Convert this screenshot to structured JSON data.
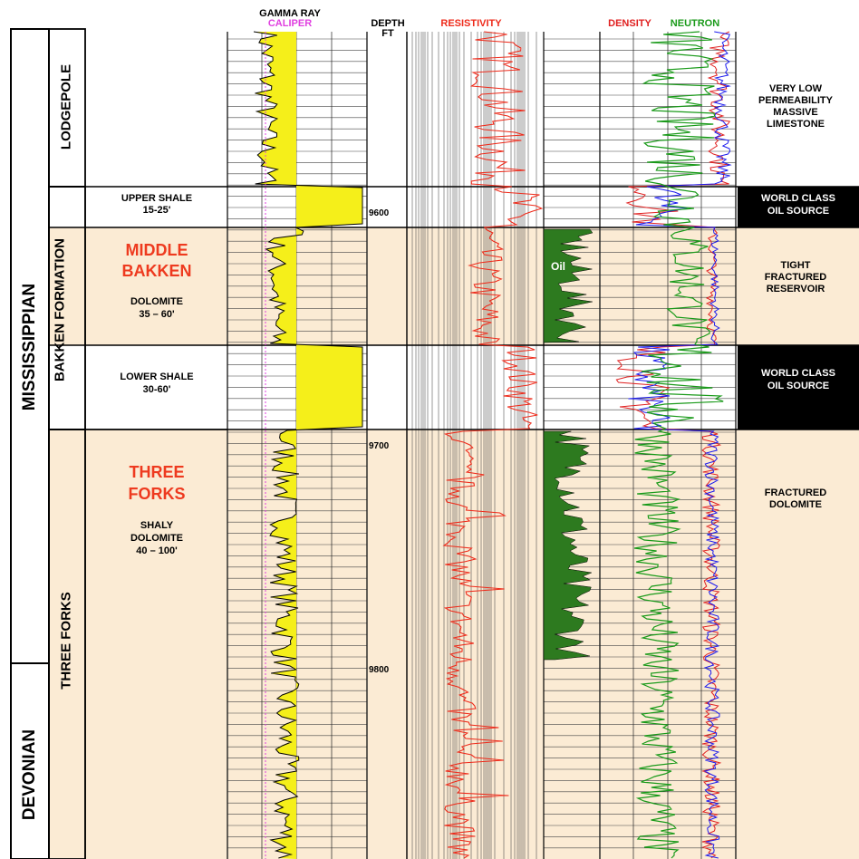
{
  "headers": {
    "gamma_ray": "GAMMA RAY",
    "caliper": "CALIPER",
    "depth": "DEPTH",
    "depth_unit": "FT",
    "resistivity": "RESISTIVITY",
    "density": "DENSITY",
    "neutron": "NEUTRON"
  },
  "systems": {
    "mississippian": "MISSISSIPPIAN",
    "devonian": "DEVONIAN"
  },
  "formations": {
    "lodgepole": "LODGEPOLE",
    "bakken": "BAKKEN FORMATION",
    "three_forks": "THREE FORKS"
  },
  "units": {
    "upper_shale": {
      "name": "UPPER SHALE",
      "thickness": "15-25'"
    },
    "middle_bakken": {
      "name_line1": "MIDDLE",
      "name_line2": "BAKKEN",
      "lith": "DOLOMITE",
      "thickness": "35 – 60'"
    },
    "lower_shale": {
      "name": "LOWER SHALE",
      "thickness": "30-60'"
    },
    "three_forks": {
      "name_line1": "THREE",
      "name_line2": "FORKS",
      "lith_line1": "SHALY",
      "lith_line2": "DOLOMITE",
      "thickness": "40 – 100'"
    }
  },
  "depths": [
    "9600",
    "9700",
    "9800"
  ],
  "oil_label": "Oil",
  "descriptions": {
    "lodgepole": [
      "VERY LOW",
      "PERMEABILITY",
      "MASSIVE",
      "LIMESTONE"
    ],
    "upper_shale": [
      "WORLD CLASS",
      "OIL SOURCE"
    ],
    "middle_bakken": [
      "TIGHT",
      "FRACTURED",
      "RESERVOIR"
    ],
    "lower_shale": [
      "WORLD CLASS",
      "OIL SOURCE"
    ],
    "three_forks": [
      "FRACTURED",
      "DOLOMITE"
    ]
  },
  "colors": {
    "gamma_fill": "#f5ef1a",
    "caliper": "#e040e0",
    "resistivity": "#ee2a1a",
    "density": "#e02020",
    "neutron": "#1a9a1a",
    "blue_curve": "#1a1aee",
    "oil_fill": "#2d7a1f",
    "beige": "#fbebd4",
    "formation_label_red": "#ee3a1f"
  }
}
